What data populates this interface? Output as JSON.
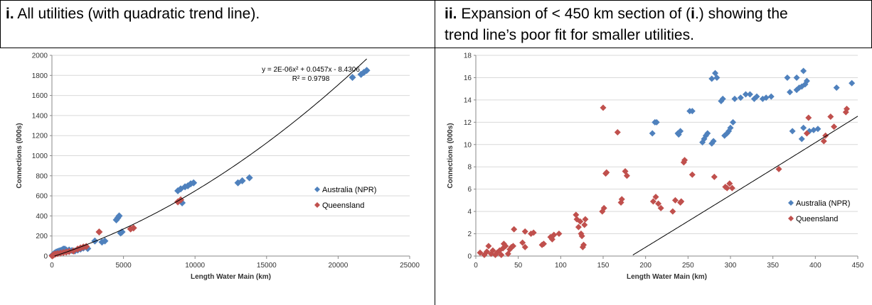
{
  "captions": {
    "left": {
      "num": "i.",
      "text": " All utilities (with quadratic trend line)."
    },
    "right": {
      "num": "ii.",
      "line1_pre": " Expansion of  < 450 km section of (",
      "line1_bold": "i",
      "line1_post": ".) showing the",
      "line2": "trend line’s poor fit for smaller utilities."
    }
  },
  "colors": {
    "australia": "#4F81BD",
    "queensland": "#C0504D",
    "trend": "#000000",
    "grid": "#D9D9D9"
  },
  "chart_data": [
    {
      "type": "scatter",
      "title": "",
      "xlabel": "Length Water Main (km)",
      "ylabel": "Connections (000s)",
      "xlim": [
        0,
        25000
      ],
      "ylim": [
        0,
        2000
      ],
      "x_ticks": [
        "0",
        "5000",
        "10000",
        "15000",
        "20000",
        "25000"
      ],
      "y_ticks": [
        "0",
        "200",
        "400",
        "600",
        "800",
        "1000",
        "1200",
        "1400",
        "1600",
        "1800",
        "2000"
      ],
      "grid": true,
      "legend_position": "right",
      "trendline": {
        "type": "quadratic",
        "equation": "y = 2E-06x² + 0.0457x - 8.4306",
        "r2": "R² = 0.9798",
        "coefficients": [
          2e-06,
          0.0457,
          -8.4306
        ],
        "x_range": [
          185,
          22000
        ]
      },
      "series": [
        {
          "name": "Australia (NPR)",
          "points": [
            [
              30,
              10
            ],
            [
              80,
              15
            ],
            [
              150,
              25
            ],
            [
              200,
              30
            ],
            [
              300,
              40
            ],
            [
              400,
              45
            ],
            [
              500,
              50
            ],
            [
              600,
              55
            ],
            [
              700,
              60
            ],
            [
              800,
              70
            ],
            [
              900,
              70
            ],
            [
              1000,
              60
            ],
            [
              1200,
              60
            ],
            [
              1400,
              55
            ],
            [
              1600,
              50
            ],
            [
              1800,
              60
            ],
            [
              2000,
              70
            ],
            [
              2200,
              80
            ],
            [
              2500,
              75
            ],
            [
              3000,
              150
            ],
            [
              3500,
              140
            ],
            [
              3700,
              150
            ],
            [
              4500,
              360
            ],
            [
              4600,
              380
            ],
            [
              4700,
              400
            ],
            [
              4800,
              230
            ],
            [
              4900,
              240
            ],
            [
              8800,
              650
            ],
            [
              9000,
              670
            ],
            [
              9100,
              530
            ],
            [
              9300,
              690
            ],
            [
              9500,
              700
            ],
            [
              9700,
              720
            ],
            [
              9900,
              730
            ],
            [
              13000,
              730
            ],
            [
              13300,
              750
            ],
            [
              13800,
              780
            ],
            [
              21000,
              1780
            ],
            [
              21600,
              1810
            ],
            [
              21800,
              1830
            ],
            [
              22000,
              1850
            ]
          ]
        },
        {
          "name": "Queensland",
          "points": [
            [
              20,
              2
            ],
            [
              50,
              5
            ],
            [
              100,
              10
            ],
            [
              150,
              15
            ],
            [
              250,
              20
            ],
            [
              400,
              25
            ],
            [
              600,
              30
            ],
            [
              800,
              35
            ],
            [
              1000,
              40
            ],
            [
              1200,
              45
            ],
            [
              1500,
              50
            ],
            [
              1800,
              70
            ],
            [
              2000,
              80
            ],
            [
              2200,
              90
            ],
            [
              2400,
              95
            ],
            [
              3300,
              240
            ],
            [
              5500,
              270
            ],
            [
              5700,
              280
            ],
            [
              8800,
              540
            ],
            [
              9000,
              560
            ]
          ]
        }
      ]
    },
    {
      "type": "scatter",
      "title": "",
      "xlabel": "Length Water Main (km)",
      "ylabel": "Connections (000s)",
      "xlim": [
        0,
        450
      ],
      "ylim": [
        0,
        18
      ],
      "x_ticks": [
        "0",
        "50",
        "100",
        "150",
        "200",
        "250",
        "300",
        "350",
        "400",
        "450"
      ],
      "y_ticks": [
        "0",
        "2",
        "4",
        "6",
        "8",
        "10",
        "12",
        "14",
        "16",
        "18"
      ],
      "grid": true,
      "legend_position": "right",
      "trendline": {
        "type": "quadratic",
        "coefficients": [
          2e-06,
          0.0457,
          -8.4306
        ],
        "x_range": [
          185,
          450
        ]
      },
      "series": [
        {
          "name": "Australia (NPR)",
          "points": [
            [
              208,
              11
            ],
            [
              211,
              12
            ],
            [
              213,
              12
            ],
            [
              238,
              11
            ],
            [
              239,
              10.9
            ],
            [
              241,
              11.2
            ],
            [
              252,
              13
            ],
            [
              255,
              13
            ],
            [
              267,
              10.2
            ],
            [
              269,
              10.5
            ],
            [
              271,
              10.8
            ],
            [
              273,
              11
            ],
            [
              278,
              10.1
            ],
            [
              280,
              10.3
            ],
            [
              278,
              15.9
            ],
            [
              282,
              16.4
            ],
            [
              284,
              16
            ],
            [
              289,
              13.9
            ],
            [
              291,
              14.1
            ],
            [
              293,
              10.8
            ],
            [
              296,
              11
            ],
            [
              298,
              11.2
            ],
            [
              300,
              11.5
            ],
            [
              303,
              12
            ],
            [
              305,
              14.1
            ],
            [
              312,
              14.2
            ],
            [
              318,
              14.5
            ],
            [
              323,
              14.5
            ],
            [
              328,
              14.1
            ],
            [
              331,
              14.3
            ],
            [
              338,
              14.1
            ],
            [
              342,
              14.2
            ],
            [
              348,
              14.3
            ],
            [
              367,
              16
            ],
            [
              370,
              14.7
            ],
            [
              373,
              11.2
            ],
            [
              378,
              14.9
            ],
            [
              378,
              16
            ],
            [
              381,
              15.1
            ],
            [
              384,
              10.5
            ],
            [
              384,
              15.2
            ],
            [
              386,
              16.6
            ],
            [
              386,
              11.5
            ],
            [
              388,
              15.4
            ],
            [
              390,
              15.7
            ],
            [
              393,
              11.2
            ],
            [
              398,
              11.3
            ],
            [
              403,
              11.4
            ],
            [
              425,
              15.1
            ],
            [
              443,
              15.5
            ]
          ]
        },
        {
          "name": "Queensland",
          "points": [
            [
              5,
              0.3
            ],
            [
              10,
              0.1
            ],
            [
              13,
              0.4
            ],
            [
              15,
              0.9
            ],
            [
              18,
              0.2
            ],
            [
              20,
              0.5
            ],
            [
              23,
              0.1
            ],
            [
              25,
              0.3
            ],
            [
              28,
              0.5
            ],
            [
              30,
              0.1
            ],
            [
              32,
              0.7
            ],
            [
              33,
              1.1
            ],
            [
              35,
              0.9
            ],
            [
              38,
              0.2
            ],
            [
              40,
              0.6
            ],
            [
              42,
              0.8
            ],
            [
              44,
              0.9
            ],
            [
              45,
              2.4
            ],
            [
              55,
              1.2
            ],
            [
              58,
              0.8
            ],
            [
              58,
              2.2
            ],
            [
              65,
              2.0
            ],
            [
              68,
              2.1
            ],
            [
              78,
              1.0
            ],
            [
              80,
              1.1
            ],
            [
              88,
              1.7
            ],
            [
              90,
              1.5
            ],
            [
              92,
              1.9
            ],
            [
              98,
              2.0
            ],
            [
              118,
              3.7
            ],
            [
              119,
              3.3
            ],
            [
              121,
              2.6
            ],
            [
              123,
              3.1
            ],
            [
              124,
              2.0
            ],
            [
              125,
              1.8
            ],
            [
              126,
              0.8
            ],
            [
              127,
              1.0
            ],
            [
              128,
              2.8
            ],
            [
              129,
              3.3
            ],
            [
              149,
              4.0
            ],
            [
              150,
              13.3
            ],
            [
              151,
              4.3
            ],
            [
              153,
              7.4
            ],
            [
              154,
              7.5
            ],
            [
              167,
              11.1
            ],
            [
              171,
              4.8
            ],
            [
              172,
              5.1
            ],
            [
              176,
              7.6
            ],
            [
              178,
              7.2
            ],
            [
              209,
              4.9
            ],
            [
              212,
              5.3
            ],
            [
              215,
              4.7
            ],
            [
              218,
              4.3
            ],
            [
              232,
              4.0
            ],
            [
              235,
              5.0
            ],
            [
              241,
              4.8
            ],
            [
              242,
              4.9
            ],
            [
              245,
              8.4
            ],
            [
              246,
              8.6
            ],
            [
              255,
              7.3
            ],
            [
              281,
              7.1
            ],
            [
              294,
              6.2
            ],
            [
              296,
              6.1
            ],
            [
              299,
              6.5
            ],
            [
              302,
              6.1
            ],
            [
              357,
              7.8
            ],
            [
              390,
              11.0
            ],
            [
              392,
              12.4
            ],
            [
              410,
              10.3
            ],
            [
              412,
              10.8
            ],
            [
              418,
              12.5
            ],
            [
              422,
              11.6
            ],
            [
              436,
              12.9
            ],
            [
              437,
              13.2
            ]
          ]
        }
      ]
    }
  ]
}
